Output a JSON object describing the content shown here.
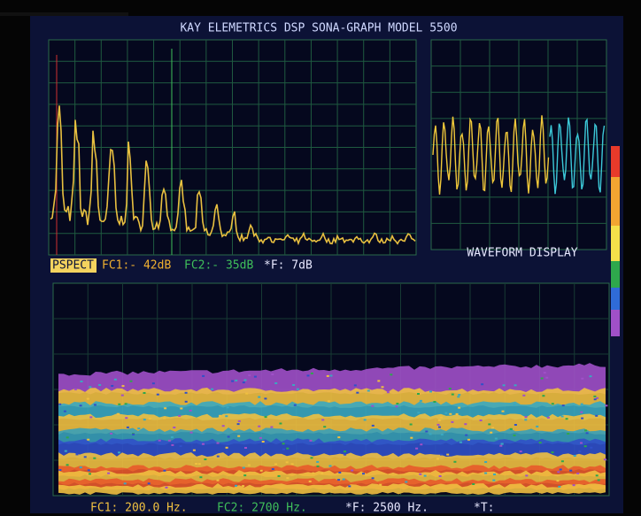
{
  "header": {
    "title": "KAY ELEMETRICS DSP SONA-GRAPH MODEL 5500"
  },
  "spectrum_panel": {
    "mode": "PSPECT",
    "fc1": "FC1:- 42dB",
    "fc2": "FC2:- 35dB",
    "delta_f": "*F:   7dB"
  },
  "waveform_panel": {
    "label": "WAVEFORM DISPLAY"
  },
  "spectrogram_panel": {
    "fc1": "FC1: 200.0 Hz.",
    "fc2": "FC2: 2700  Hz.",
    "delta_f": "*F: 2500  Hz.",
    "delta_t": "*T:"
  }
}
